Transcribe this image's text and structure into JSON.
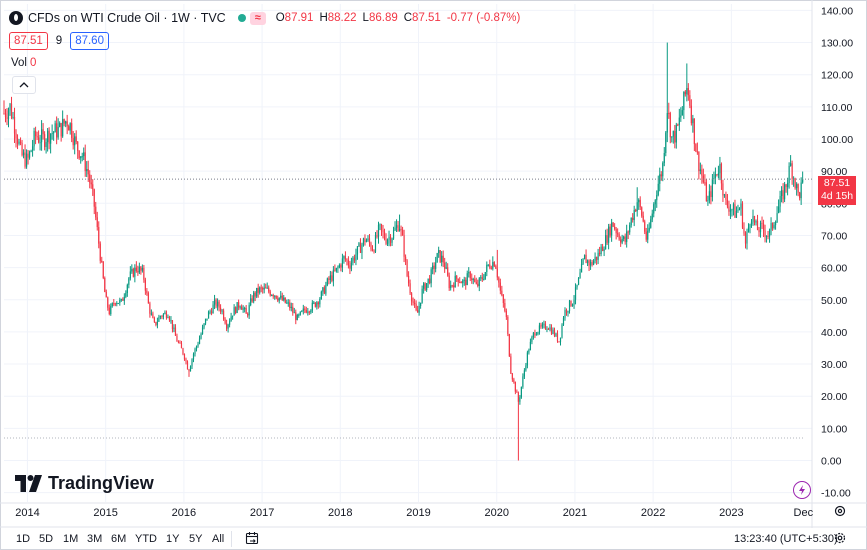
{
  "legend": {
    "title": "CFDs on WTI Crude Oil · 1W · TVC",
    "open_label": "O",
    "open": "87.91",
    "high_label": "H",
    "high": "88.22",
    "low_label": "L",
    "low": "86.89",
    "close_label": "C",
    "close": "87.51",
    "change": "-0.77 (-0.87%)",
    "delayed_icon": "≈"
  },
  "trade": {
    "sell": "87.51",
    "spread": "9",
    "buy": "87.60"
  },
  "volume": {
    "label": "Vol",
    "value": "0"
  },
  "collapse_icon": "chevron-up-icon",
  "brand": "TradingView",
  "last_price": {
    "value": "87.51",
    "countdown": "4d 15h"
  },
  "bottom_bar": {
    "ranges": [
      "1D",
      "5D",
      "1M",
      "3M",
      "6M",
      "YTD",
      "1Y",
      "5Y",
      "All"
    ],
    "clock": "13:23:40 (UTC+5:30)"
  },
  "colors": {
    "up": "#089981",
    "down": "#f23645",
    "grid": "#f0f3fa"
  },
  "chart_data": {
    "type": "candlestick",
    "title": "CFDs on WTI Crude Oil",
    "interval": "1W",
    "ylim": [
      -10,
      140
    ],
    "y_ticks": [
      -10,
      0,
      10,
      20,
      30,
      40,
      50,
      60,
      70,
      80,
      90,
      100,
      110,
      120,
      130,
      140
    ],
    "y_tick_labels": [
      "-10.00",
      "0.00",
      "10.00",
      "20.00",
      "30.00",
      "40.00",
      "50.00",
      "60.00",
      "70.00",
      "80.00",
      "90.00",
      "100.00",
      "110.00",
      "120.00",
      "130.00",
      "140.00"
    ],
    "x_tick_labels": [
      "2014",
      "2015",
      "2016",
      "2017",
      "2018",
      "2019",
      "2020",
      "2021",
      "2022",
      "2023",
      "Dec"
    ],
    "x_range": [
      2013.7,
      2023.98
    ],
    "x_ticks": [
      2014,
      2015,
      2016,
      2017,
      2018,
      2019,
      2020,
      2021,
      2022,
      2023,
      2023.92
    ],
    "last_close": 87.51,
    "price_line_low": 7,
    "close_path": [
      [
        2013.7,
        108
      ],
      [
        2013.78,
        110
      ],
      [
        2013.85,
        103
      ],
      [
        2013.92,
        95
      ],
      [
        2014.0,
        93
      ],
      [
        2014.1,
        101
      ],
      [
        2014.2,
        100
      ],
      [
        2014.3,
        102
      ],
      [
        2014.42,
        103
      ],
      [
        2014.5,
        106
      ],
      [
        2014.55,
        104
      ],
      [
        2014.62,
        98
      ],
      [
        2014.7,
        95
      ],
      [
        2014.78,
        89
      ],
      [
        2014.85,
        80
      ],
      [
        2014.92,
        66
      ],
      [
        2015.0,
        50
      ],
      [
        2015.05,
        46
      ],
      [
        2015.12,
        50
      ],
      [
        2015.2,
        49
      ],
      [
        2015.3,
        57
      ],
      [
        2015.4,
        60
      ],
      [
        2015.48,
        58
      ],
      [
        2015.55,
        48
      ],
      [
        2015.62,
        42
      ],
      [
        2015.7,
        45
      ],
      [
        2015.8,
        46
      ],
      [
        2015.9,
        38
      ],
      [
        2016.0,
        33
      ],
      [
        2016.06,
        28
      ],
      [
        2016.12,
        33
      ],
      [
        2016.2,
        38
      ],
      [
        2016.3,
        45
      ],
      [
        2016.4,
        49
      ],
      [
        2016.48,
        47
      ],
      [
        2016.55,
        42
      ],
      [
        2016.62,
        46
      ],
      [
        2016.72,
        49
      ],
      [
        2016.8,
        45
      ],
      [
        2016.88,
        51
      ],
      [
        2016.96,
        53
      ],
      [
        2017.05,
        53
      ],
      [
        2017.15,
        52
      ],
      [
        2017.25,
        50
      ],
      [
        2017.35,
        48
      ],
      [
        2017.45,
        44
      ],
      [
        2017.55,
        47
      ],
      [
        2017.65,
        48
      ],
      [
        2017.75,
        51
      ],
      [
        2017.85,
        56
      ],
      [
        2017.95,
        59
      ],
      [
        2018.05,
        63
      ],
      [
        2018.12,
        61
      ],
      [
        2018.22,
        65
      ],
      [
        2018.32,
        69
      ],
      [
        2018.42,
        66
      ],
      [
        2018.5,
        72
      ],
      [
        2018.58,
        69
      ],
      [
        2018.66,
        70
      ],
      [
        2018.75,
        74
      ],
      [
        2018.8,
        68
      ],
      [
        2018.85,
        58
      ],
      [
        2018.92,
        50
      ],
      [
        2018.98,
        45
      ],
      [
        2019.05,
        53
      ],
      [
        2019.15,
        57
      ],
      [
        2019.25,
        64
      ],
      [
        2019.32,
        62
      ],
      [
        2019.4,
        54
      ],
      [
        2019.5,
        57
      ],
      [
        2019.58,
        55
      ],
      [
        2019.66,
        58
      ],
      [
        2019.74,
        54
      ],
      [
        2019.82,
        57
      ],
      [
        2019.9,
        61
      ],
      [
        2019.98,
        62
      ],
      [
        2020.05,
        52
      ],
      [
        2020.12,
        45
      ],
      [
        2020.18,
        28
      ],
      [
        2020.24,
        22
      ],
      [
        2020.28,
        18
      ],
      [
        2020.33,
        25
      ],
      [
        2020.4,
        34
      ],
      [
        2020.48,
        40
      ],
      [
        2020.56,
        41
      ],
      [
        2020.65,
        42
      ],
      [
        2020.72,
        40
      ],
      [
        2020.8,
        37
      ],
      [
        2020.86,
        46
      ],
      [
        2020.92,
        48
      ],
      [
        2020.98,
        50
      ],
      [
        2021.05,
        56
      ],
      [
        2021.12,
        63
      ],
      [
        2021.2,
        61
      ],
      [
        2021.3,
        64
      ],
      [
        2021.4,
        69
      ],
      [
        2021.48,
        74
      ],
      [
        2021.56,
        70
      ],
      [
        2021.64,
        68
      ],
      [
        2021.72,
        75
      ],
      [
        2021.8,
        81
      ],
      [
        2021.86,
        76
      ],
      [
        2021.92,
        68
      ],
      [
        2021.98,
        76
      ],
      [
        2022.05,
        85
      ],
      [
        2022.12,
        91
      ],
      [
        2022.18,
        110
      ],
      [
        2022.24,
        100
      ],
      [
        2022.3,
        102
      ],
      [
        2022.38,
        110
      ],
      [
        2022.44,
        117
      ],
      [
        2022.5,
        106
      ],
      [
        2022.56,
        95
      ],
      [
        2022.62,
        89
      ],
      [
        2022.7,
        80
      ],
      [
        2022.78,
        88
      ],
      [
        2022.85,
        92
      ],
      [
        2022.92,
        80
      ],
      [
        2022.98,
        79
      ],
      [
        2023.05,
        77
      ],
      [
        2023.12,
        79
      ],
      [
        2023.18,
        67
      ],
      [
        2023.25,
        77
      ],
      [
        2023.32,
        72
      ],
      [
        2023.4,
        72
      ],
      [
        2023.48,
        70
      ],
      [
        2023.55,
        75
      ],
      [
        2023.62,
        80
      ],
      [
        2023.7,
        86
      ],
      [
        2023.76,
        92
      ],
      [
        2023.8,
        88
      ],
      [
        2023.86,
        82
      ],
      [
        2023.92,
        87.51
      ]
    ],
    "highs": [
      [
        2013.7,
        112
      ],
      [
        2014.5,
        107.5
      ],
      [
        2015.4,
        62
      ],
      [
        2016.4,
        51.5
      ],
      [
        2017.05,
        55
      ],
      [
        2018.75,
        76.5
      ],
      [
        2019.25,
        66.5
      ],
      [
        2020.0,
        65.5
      ],
      [
        2021.8,
        85
      ],
      [
        2022.18,
        130
      ],
      [
        2022.44,
        123.5
      ],
      [
        2023.76,
        95
      ]
    ],
    "lows": [
      [
        2016.06,
        26
      ],
      [
        2020.28,
        0
      ]
    ]
  }
}
